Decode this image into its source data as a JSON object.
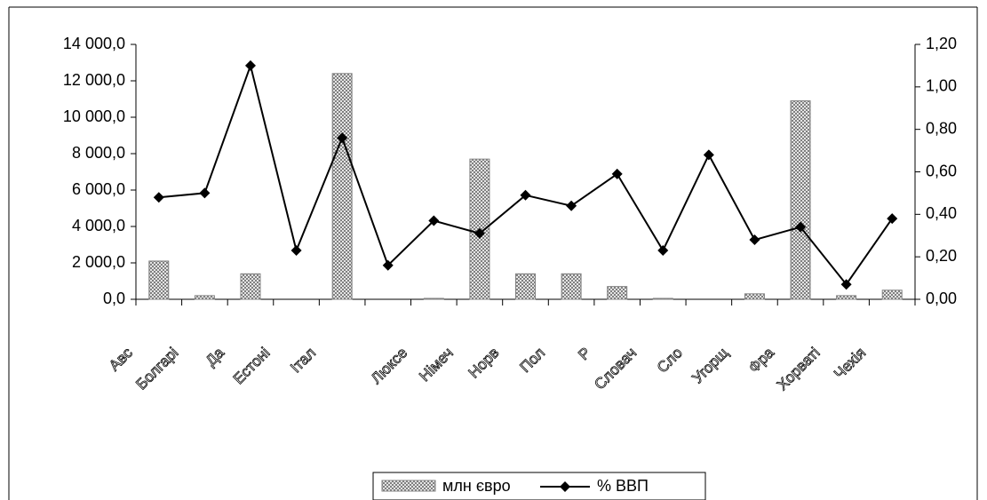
{
  "chart_data": {
    "type": "bar_line",
    "categories": [
      "Авс",
      "Болгарі",
      "Да",
      "Естоні",
      "Італ",
      null,
      "Люксе",
      "Німеч",
      "Норв",
      "Пол",
      "Р",
      "Словач",
      "Сло",
      "Угорщ",
      "Фра",
      "Хорваті",
      "Чехія"
    ],
    "series": [
      {
        "name": "млн євро",
        "type": "bar",
        "color": "#808080",
        "values": [
          2100,
          200,
          1400,
          0,
          12400,
          0,
          50,
          7700,
          1400,
          1400,
          700,
          50,
          0,
          300,
          10900,
          200,
          500
        ]
      },
      {
        "name": "% ВВП",
        "type": "line",
        "axis": "y2",
        "color": "#000000",
        "values": [
          0.48,
          0.5,
          1.1,
          0.23,
          0.76,
          0.16,
          0.37,
          0.31,
          0.49,
          0.44,
          0.59,
          0.23,
          0.68,
          0.28,
          0.34,
          0.07,
          0.38
        ]
      }
    ],
    "ylim": [
      0,
      14000
    ],
    "yticks": [
      {
        "value": 0,
        "label": "0,0"
      },
      {
        "value": 2000,
        "label": "2 000,0"
      },
      {
        "value": 4000,
        "label": "4 000,0"
      },
      {
        "value": 6000,
        "label": "6 000,0"
      },
      {
        "value": 8000,
        "label": "8 000,0"
      },
      {
        "value": 10000,
        "label": "10 000,0"
      },
      {
        "value": 12000,
        "label": "12 000,0"
      },
      {
        "value": 14000,
        "label": "14 000,0"
      }
    ],
    "y2lim": [
      0,
      1.2
    ],
    "y2ticks": [
      {
        "value": 0,
        "label": "0,00"
      },
      {
        "value": 0.2,
        "label": "0,20"
      },
      {
        "value": 0.4,
        "label": "0,40"
      },
      {
        "value": 0.6,
        "label": "0,60"
      },
      {
        "value": 0.8,
        "label": "0,80"
      },
      {
        "value": 1.0,
        "label": "1,00"
      },
      {
        "value": 1.2,
        "label": "1,20"
      }
    ]
  }
}
